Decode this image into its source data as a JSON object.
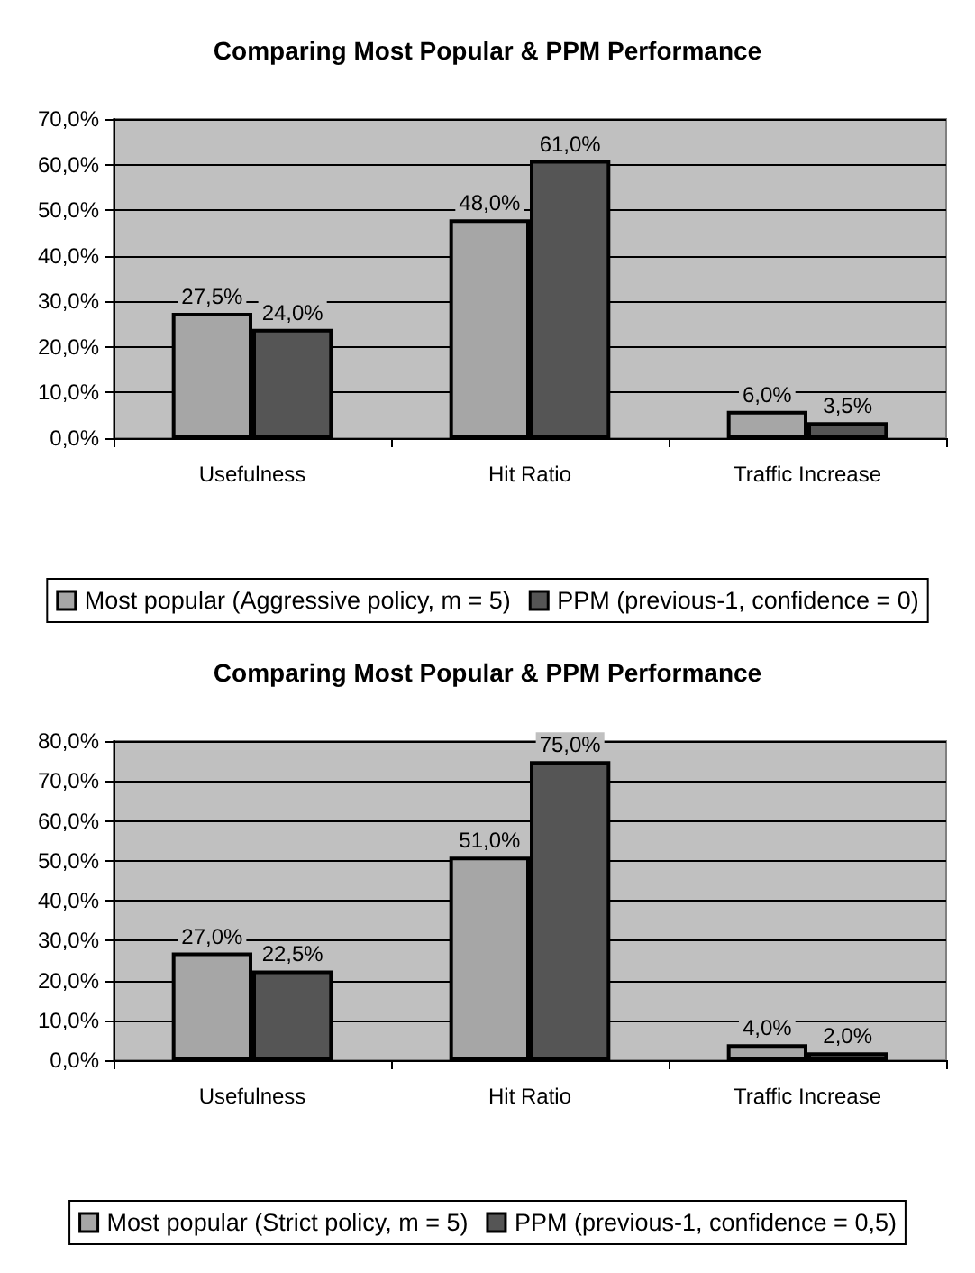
{
  "chart_data": [
    {
      "type": "bar",
      "title": "Comparing Most Popular & PPM Performance",
      "categories": [
        "Usefulness",
        "Hit Ratio",
        "Traffic Increase"
      ],
      "series": [
        {
          "name": "Most popular (Aggressive policy, m = 5)",
          "color": "#a6a6a6",
          "values": [
            27.5,
            48,
            6
          ],
          "value_labels": [
            "27,5%",
            "48,0%",
            "6,0%"
          ]
        },
        {
          "name": "PPM (previous-1, confidence = 0)",
          "color": "#555555",
          "values": [
            24,
            61,
            3.5
          ],
          "value_labels": [
            "24,0%",
            "61,0%",
            "3,5%"
          ]
        }
      ],
      "ylim": [
        0,
        70
      ],
      "yticks": [
        {
          "value": 0,
          "label": "0,0%"
        },
        {
          "value": 10,
          "label": "10,0%"
        },
        {
          "value": 20,
          "label": "20,0%"
        },
        {
          "value": 30,
          "label": "30,0%"
        },
        {
          "value": 40,
          "label": "40,0%"
        },
        {
          "value": 50,
          "label": "50,0%"
        },
        {
          "value": 60,
          "label": "60,0%"
        },
        {
          "value": 70,
          "label": "70,0%"
        }
      ],
      "grid": "y",
      "legend": "bottom"
    },
    {
      "type": "bar",
      "title": "Comparing Most Popular & PPM Performance",
      "categories": [
        "Usefulness",
        "Hit Ratio",
        "Traffic Increase"
      ],
      "series": [
        {
          "name": "Most popular (Strict policy, m = 5)",
          "color": "#a6a6a6",
          "values": [
            27,
            51,
            4
          ],
          "value_labels": [
            "27,0%",
            "51,0%",
            "4,0%"
          ]
        },
        {
          "name": "PPM (previous-1, confidence = 0,5)",
          "color": "#555555",
          "values": [
            22.5,
            75,
            2
          ],
          "value_labels": [
            "22,5%",
            "75,0%",
            "2,0%"
          ]
        }
      ],
      "ylim": [
        0,
        80
      ],
      "yticks": [
        {
          "value": 0,
          "label": "0,0%"
        },
        {
          "value": 10,
          "label": "10,0%"
        },
        {
          "value": 20,
          "label": "20,0%"
        },
        {
          "value": 30,
          "label": "30,0%"
        },
        {
          "value": 40,
          "label": "40,0%"
        },
        {
          "value": 50,
          "label": "50,0%"
        },
        {
          "value": 60,
          "label": "60,0%"
        },
        {
          "value": 70,
          "label": "70,0%"
        },
        {
          "value": 80,
          "label": "80,0%"
        }
      ],
      "grid": "y",
      "legend": "bottom"
    }
  ]
}
